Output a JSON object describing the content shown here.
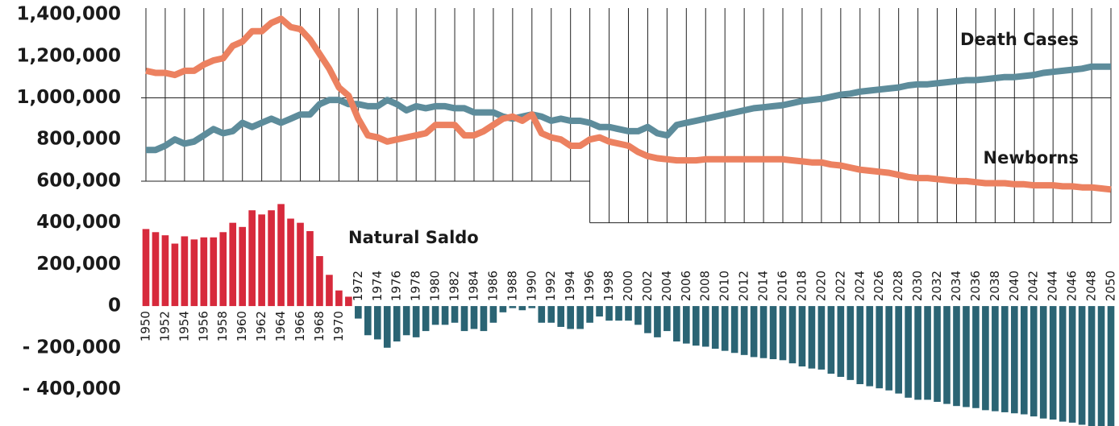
{
  "chart_data": {
    "type": "line_bar",
    "categories": [
      "1950",
      null,
      "1952",
      null,
      "1954",
      null,
      "1956",
      null,
      "1958",
      null,
      "1960",
      null,
      "1962",
      null,
      "1964",
      null,
      "1966",
      null,
      "1968",
      null,
      "1970",
      null,
      "1972",
      null,
      "1974",
      null,
      "1976",
      null,
      "1978",
      null,
      "1980",
      null,
      "1982",
      null,
      "1984",
      null,
      "1986",
      null,
      "1988",
      null,
      "1990",
      null,
      "1992",
      null,
      "1994",
      null,
      "1996",
      null,
      "1998",
      null,
      "2000",
      null,
      "2002",
      null,
      "2004",
      null,
      "2006",
      null,
      "2008",
      null,
      "2010",
      null,
      "2012",
      null,
      "2014",
      null,
      "2016",
      null,
      "2018",
      null,
      "2020",
      null,
      "2022",
      null,
      "2024",
      null,
      "2026",
      null,
      "2028",
      null,
      "2030",
      null,
      "2032",
      null,
      "2034",
      null,
      "2036",
      null,
      "2038",
      null,
      "2040",
      null,
      "2042",
      null,
      "2044",
      null,
      "2046",
      null,
      "2048",
      null,
      "2050"
    ],
    "series": [
      {
        "name": "Death Cases",
        "kind": "line",
        "color": "#5d8c9b",
        "values": [
          750000,
          750000,
          770000,
          800000,
          780000,
          790000,
          820000,
          850000,
          830000,
          840000,
          880000,
          860000,
          880000,
          900000,
          880000,
          900000,
          920000,
          920000,
          970000,
          990000,
          990000,
          970000,
          970000,
          960000,
          960000,
          990000,
          970000,
          940000,
          960000,
          950000,
          960000,
          960000,
          950000,
          950000,
          930000,
          930000,
          930000,
          910000,
          900000,
          910000,
          920000,
          910000,
          890000,
          900000,
          890000,
          890000,
          880000,
          860000,
          860000,
          850000,
          840000,
          840000,
          860000,
          830000,
          820000,
          870000,
          880000,
          890000,
          900000,
          910000,
          920000,
          930000,
          940000,
          950000,
          955000,
          960000,
          965000,
          975000,
          985000,
          990000,
          995000,
          1005000,
          1015000,
          1020000,
          1030000,
          1035000,
          1040000,
          1045000,
          1050000,
          1060000,
          1065000,
          1065000,
          1070000,
          1075000,
          1080000,
          1085000,
          1085000,
          1090000,
          1095000,
          1100000,
          1100000,
          1105000,
          1110000,
          1120000,
          1125000,
          1130000,
          1135000,
          1140000,
          1150000,
          1150000,
          1150000
        ]
      },
      {
        "name": "Newborns",
        "kind": "line",
        "color": "#ec8160",
        "values": [
          1130000,
          1120000,
          1120000,
          1110000,
          1130000,
          1130000,
          1160000,
          1180000,
          1190000,
          1250000,
          1270000,
          1320000,
          1320000,
          1360000,
          1380000,
          1340000,
          1330000,
          1280000,
          1210000,
          1140000,
          1050000,
          1010000,
          900000,
          820000,
          810000,
          790000,
          800000,
          810000,
          820000,
          830000,
          870000,
          870000,
          870000,
          820000,
          820000,
          840000,
          870000,
          900000,
          910000,
          890000,
          920000,
          830000,
          810000,
          800000,
          770000,
          770000,
          800000,
          810000,
          790000,
          780000,
          770000,
          740000,
          720000,
          710000,
          705000,
          700000,
          700000,
          700000,
          705000,
          705000,
          705000,
          705000,
          705000,
          705000,
          705000,
          705000,
          705000,
          700000,
          695000,
          690000,
          690000,
          680000,
          675000,
          665000,
          655000,
          650000,
          645000,
          640000,
          630000,
          620000,
          615000,
          615000,
          610000,
          605000,
          600000,
          600000,
          595000,
          590000,
          590000,
          590000,
          585000,
          585000,
          580000,
          580000,
          580000,
          575000,
          575000,
          570000,
          570000,
          565000,
          560000
        ]
      },
      {
        "name": "Natural Saldo",
        "kind": "bar",
        "color": "#d72a3c",
        "negative_color": "#2b6474",
        "values": [
          370000,
          355000,
          340000,
          300000,
          335000,
          320000,
          330000,
          330000,
          355000,
          400000,
          380000,
          460000,
          440000,
          460000,
          490000,
          420000,
          400000,
          360000,
          240000,
          150000,
          75000,
          45000,
          -60000,
          -140000,
          -160000,
          -200000,
          -170000,
          -140000,
          -150000,
          -120000,
          -90000,
          -90000,
          -80000,
          -120000,
          -110000,
          -120000,
          -80000,
          -30000,
          -10000,
          -20000,
          -10000,
          -80000,
          -80000,
          -100000,
          -110000,
          -110000,
          -80000,
          -50000,
          -70000,
          -70000,
          -70000,
          -90000,
          -130000,
          -150000,
          -120000,
          -170000,
          -180000,
          -190000,
          -195000,
          -205000,
          -215000,
          -225000,
          -235000,
          -245000,
          -250000,
          -255000,
          -260000,
          -275000,
          -290000,
          -300000,
          -305000,
          -325000,
          -340000,
          -355000,
          -375000,
          -385000,
          -395000,
          -405000,
          -420000,
          -440000,
          -450000,
          -450000,
          -460000,
          -470000,
          -480000,
          -485000,
          -490000,
          -500000,
          -505000,
          -510000,
          -515000,
          -520000,
          -530000,
          -540000,
          -545000,
          -555000,
          -560000,
          -570000,
          -580000,
          -585000,
          -590000
        ]
      }
    ],
    "ylim": [
      -576000,
      1470000
    ],
    "yticks": [
      {
        "value": -400000,
        "label": "- 400,000"
      },
      {
        "value": -200000,
        "label": "- 200,000"
      },
      0,
      {
        "value": 200000,
        "label": "200,000"
      },
      {
        "value": 400000,
        "label": "400,000"
      },
      {
        "value": 600000,
        "label": "600,000"
      },
      {
        "value": 800000,
        "label": "800,000"
      },
      {
        "value": 1000000,
        "label": "1,000,000"
      },
      {
        "value": 1200000,
        "label": "1,200,000"
      },
      {
        "value": 1400000,
        "label": "1,400,000"
      }
    ],
    "grid": true
  }
}
